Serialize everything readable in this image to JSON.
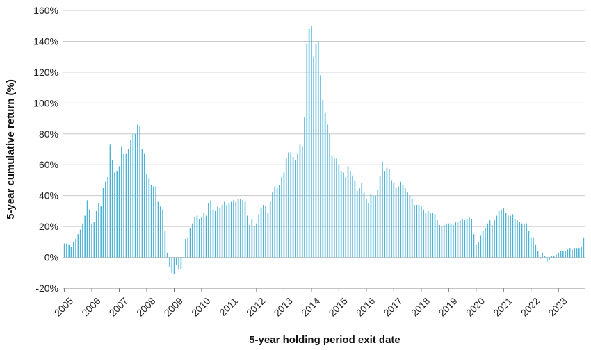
{
  "chart_data": {
    "type": "bar",
    "title": "",
    "xlabel": "5-year holding period exit date",
    "ylabel": "5-year cumulative return (%)",
    "ylim": [
      -20,
      160
    ],
    "y_ticks": [
      -20,
      0,
      20,
      40,
      60,
      80,
      100,
      120,
      140,
      160
    ],
    "y_tick_labels": [
      "-20%",
      "0%",
      "20%",
      "40%",
      "60%",
      "80%",
      "100%",
      "120%",
      "140%",
      "160%"
    ],
    "x_tick_labels": [
      "2005",
      "2006",
      "2007",
      "2008",
      "2009",
      "2010",
      "2011",
      "2012",
      "2013",
      "2014",
      "2015",
      "2016",
      "2017",
      "2018",
      "2019",
      "2020",
      "2021",
      "2022",
      "2023"
    ],
    "x_start": "2005-01",
    "frequency": "monthly",
    "grid": true,
    "legend": "none",
    "bar_color": "#4db3d6",
    "series": [
      {
        "values": [
          9,
          9,
          8,
          7,
          10,
          12,
          15,
          18,
          22,
          27,
          37,
          31,
          22,
          23,
          30,
          35,
          33,
          45,
          49,
          52,
          73,
          63,
          55,
          56,
          59,
          72,
          67,
          67,
          70,
          76,
          80,
          80,
          86,
          85,
          70,
          67,
          54,
          51,
          47,
          46,
          46,
          36,
          33,
          31,
          17,
          3,
          -6,
          -10,
          -11,
          -5,
          -8,
          -8,
          0,
          12,
          13,
          19,
          22,
          26,
          27,
          25,
          26,
          29,
          27,
          35,
          37,
          31,
          30,
          33,
          32,
          34,
          36,
          34,
          35,
          36,
          37,
          36,
          38,
          38,
          37,
          36,
          27,
          21,
          25,
          20,
          22,
          28,
          32,
          34,
          33,
          29,
          36,
          42,
          46,
          45,
          47,
          52,
          55,
          64,
          68,
          68,
          65,
          63,
          67,
          73,
          72,
          91,
          138,
          148,
          150,
          130,
          138,
          140,
          118,
          102,
          94,
          86,
          80,
          66,
          64,
          64,
          60,
          56,
          55,
          52,
          59,
          56,
          53,
          50,
          43,
          45,
          48,
          42,
          38,
          35,
          41,
          40,
          40,
          44,
          53,
          62,
          56,
          58,
          57,
          50,
          48,
          45,
          46,
          49,
          47,
          45,
          42,
          40,
          38,
          34,
          34,
          34,
          33,
          31,
          29,
          30,
          29,
          29,
          28,
          24,
          21,
          20,
          21,
          22,
          22,
          22,
          21,
          23,
          23,
          24,
          25,
          24,
          25,
          26,
          25,
          15,
          8,
          10,
          14,
          17,
          19,
          22,
          24,
          21,
          24,
          27,
          30,
          31,
          32,
          29,
          27,
          27,
          28,
          25,
          24,
          23,
          22,
          22,
          22,
          17,
          13,
          13,
          8,
          4,
          -1,
          3,
          1,
          -3,
          -2,
          1,
          1,
          2,
          3,
          4,
          4,
          4,
          5,
          6,
          5,
          6,
          6,
          6,
          7,
          13
        ]
      }
    ]
  }
}
